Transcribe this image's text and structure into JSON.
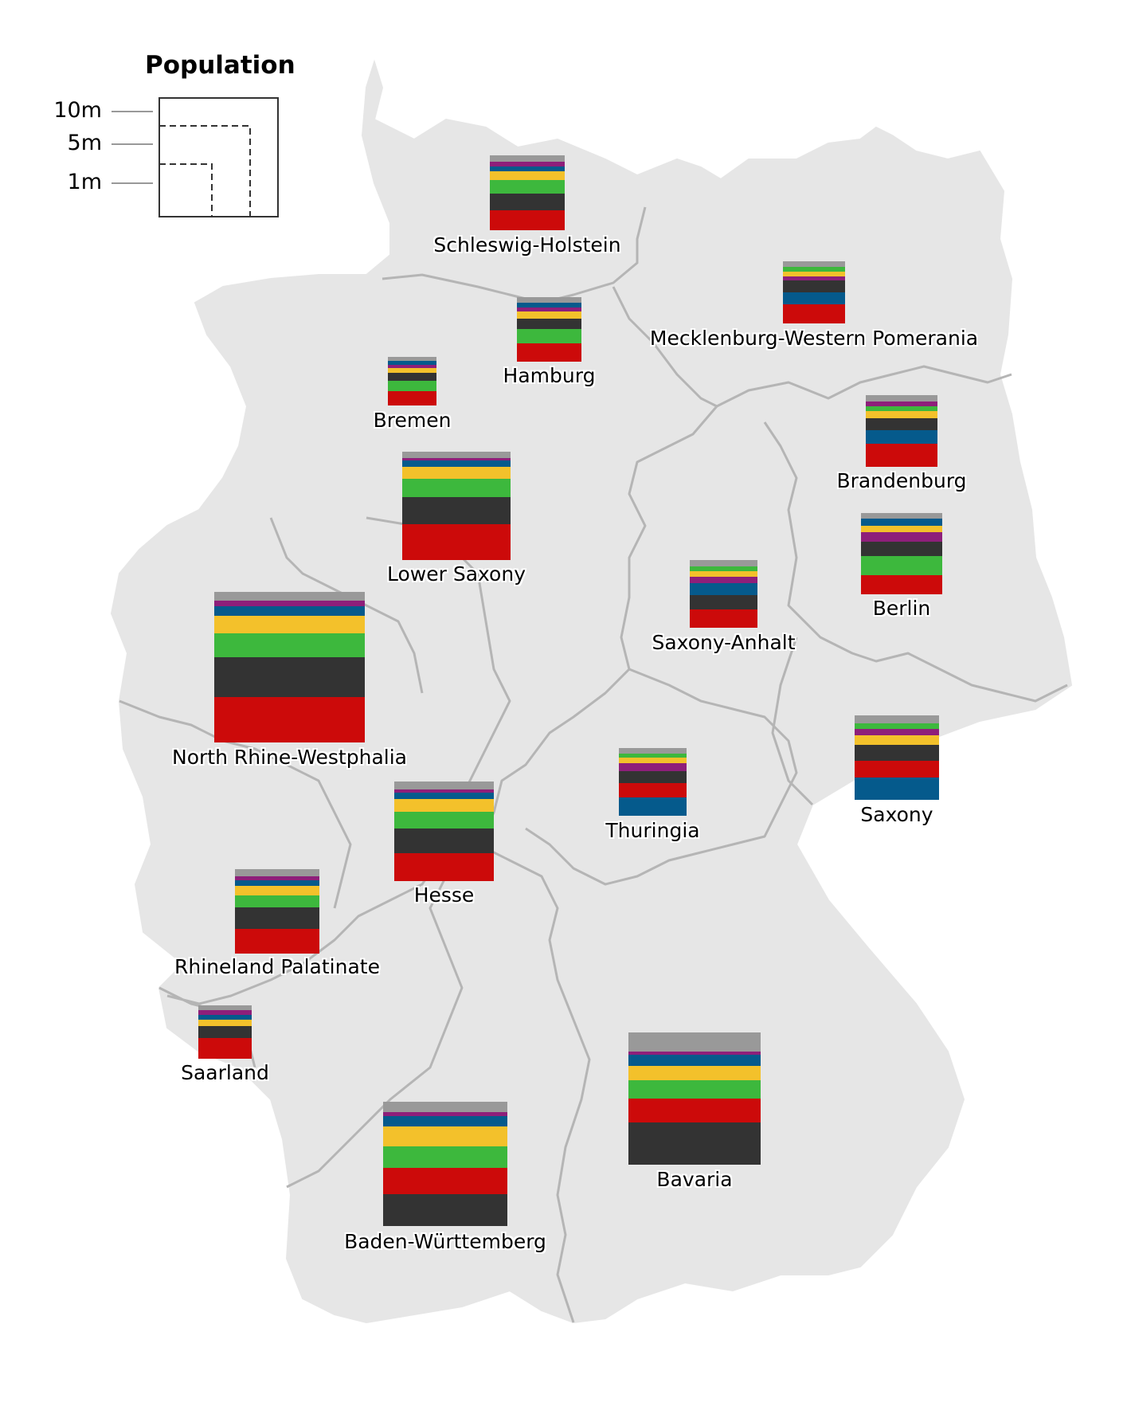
{
  "legend": {
    "title": "Population",
    "labels": [
      "10m",
      "5m",
      "1m"
    ]
  },
  "colors": {
    "red": "#cc0a0a",
    "dark": "#333333",
    "green": "#3db83d",
    "yellow": "#f3c12b",
    "blue": "#055a8c",
    "purple": "#8e1f7a",
    "grey": "#999999",
    "map_fill": "#e6e6e6",
    "border": "#b5b5b5"
  },
  "states": [
    {
      "name": "Schleswig-Holstein",
      "bands": [
        "grey",
        "purple",
        "blue",
        "yellow",
        "green",
        "dark",
        "red"
      ],
      "weights": [
        1,
        0.6,
        0.8,
        1.3,
        2,
        2.4,
        3
      ]
    },
    {
      "name": "Hamburg",
      "bands": [
        "grey",
        "blue",
        "purple",
        "yellow",
        "dark",
        "green",
        "red"
      ],
      "weights": [
        0.8,
        0.6,
        0.6,
        1,
        1.4,
        2,
        2.6
      ]
    },
    {
      "name": "Mecklenburg-Western Pomerania",
      "bands": [
        "grey",
        "green",
        "yellow",
        "purple",
        "dark",
        "blue",
        "red"
      ],
      "weights": [
        0.8,
        0.6,
        0.6,
        0.6,
        1.6,
        1.6,
        2.6
      ]
    },
    {
      "name": "Bremen",
      "bands": [
        "grey",
        "blue",
        "purple",
        "yellow",
        "dark",
        "green",
        "red"
      ],
      "weights": [
        0.6,
        0.5,
        0.5,
        0.6,
        1.2,
        1.4,
        2
      ]
    },
    {
      "name": "Brandenburg",
      "bands": [
        "grey",
        "purple",
        "green",
        "yellow",
        "dark",
        "blue",
        "red"
      ],
      "weights": [
        0.8,
        0.6,
        0.7,
        0.9,
        1.5,
        1.8,
        3
      ]
    },
    {
      "name": "Lower Saxony",
      "bands": [
        "grey",
        "purple",
        "blue",
        "yellow",
        "green",
        "dark",
        "red"
      ],
      "weights": [
        0.8,
        0.4,
        0.8,
        1.6,
        2.4,
        3.6,
        4.8
      ]
    },
    {
      "name": "Saxony-Anhalt",
      "bands": [
        "grey",
        "green",
        "yellow",
        "purple",
        "blue",
        "dark",
        "red"
      ],
      "weights": [
        0.8,
        0.6,
        0.8,
        0.8,
        1.6,
        1.8,
        2.4
      ]
    },
    {
      "name": "Berlin",
      "bands": [
        "grey",
        "blue",
        "yellow",
        "purple",
        "dark",
        "green",
        "red"
      ],
      "weights": [
        0.8,
        0.9,
        0.9,
        1.3,
        1.9,
        2.6,
        2.6
      ]
    },
    {
      "name": "North Rhine-Westphalia",
      "bands": [
        "grey",
        "purple",
        "blue",
        "yellow",
        "green",
        "dark",
        "red"
      ],
      "weights": [
        0.6,
        0.4,
        0.7,
        1.2,
        1.7,
        2.8,
        3.2
      ]
    },
    {
      "name": "Saxony",
      "bands": [
        "grey",
        "green",
        "purple",
        "yellow",
        "dark",
        "red",
        "blue"
      ],
      "weights": [
        0.9,
        0.7,
        0.7,
        1.2,
        1.8,
        2,
        2.6
      ]
    },
    {
      "name": "Thuringia",
      "bands": [
        "grey",
        "green",
        "yellow",
        "purple",
        "dark",
        "red",
        "blue"
      ],
      "weights": [
        0.7,
        0.5,
        0.6,
        1,
        1.4,
        1.8,
        2.2
      ]
    },
    {
      "name": "Hesse",
      "bands": [
        "grey",
        "purple",
        "blue",
        "yellow",
        "green",
        "dark",
        "red"
      ],
      "weights": [
        1,
        0.4,
        0.9,
        1.6,
        2.2,
        3.2,
        3.6
      ]
    },
    {
      "name": "Rhineland Palatinate",
      "bands": [
        "grey",
        "purple",
        "blue",
        "yellow",
        "green",
        "dark",
        "red"
      ],
      "weights": [
        1,
        0.5,
        0.7,
        1.3,
        1.6,
        2.9,
        3.3
      ]
    },
    {
      "name": "Saarland",
      "bands": [
        "grey",
        "purple",
        "blue",
        "yellow",
        "dark",
        "red"
      ],
      "weights": [
        0.6,
        0.6,
        0.6,
        0.8,
        1.6,
        2.6
      ]
    },
    {
      "name": "Bavaria",
      "bands": [
        "grey",
        "purple",
        "blue",
        "yellow",
        "green",
        "red",
        "dark"
      ],
      "weights": [
        2.6,
        0.4,
        1.6,
        1.9,
        2.6,
        3.2,
        5.8
      ]
    },
    {
      "name": "Baden-Württemberg",
      "bands": [
        "grey",
        "purple",
        "blue",
        "yellow",
        "green",
        "red",
        "dark"
      ],
      "weights": [
        1.4,
        0.6,
        1.4,
        2.8,
        3,
        3.6,
        4.4
      ]
    }
  ]
}
